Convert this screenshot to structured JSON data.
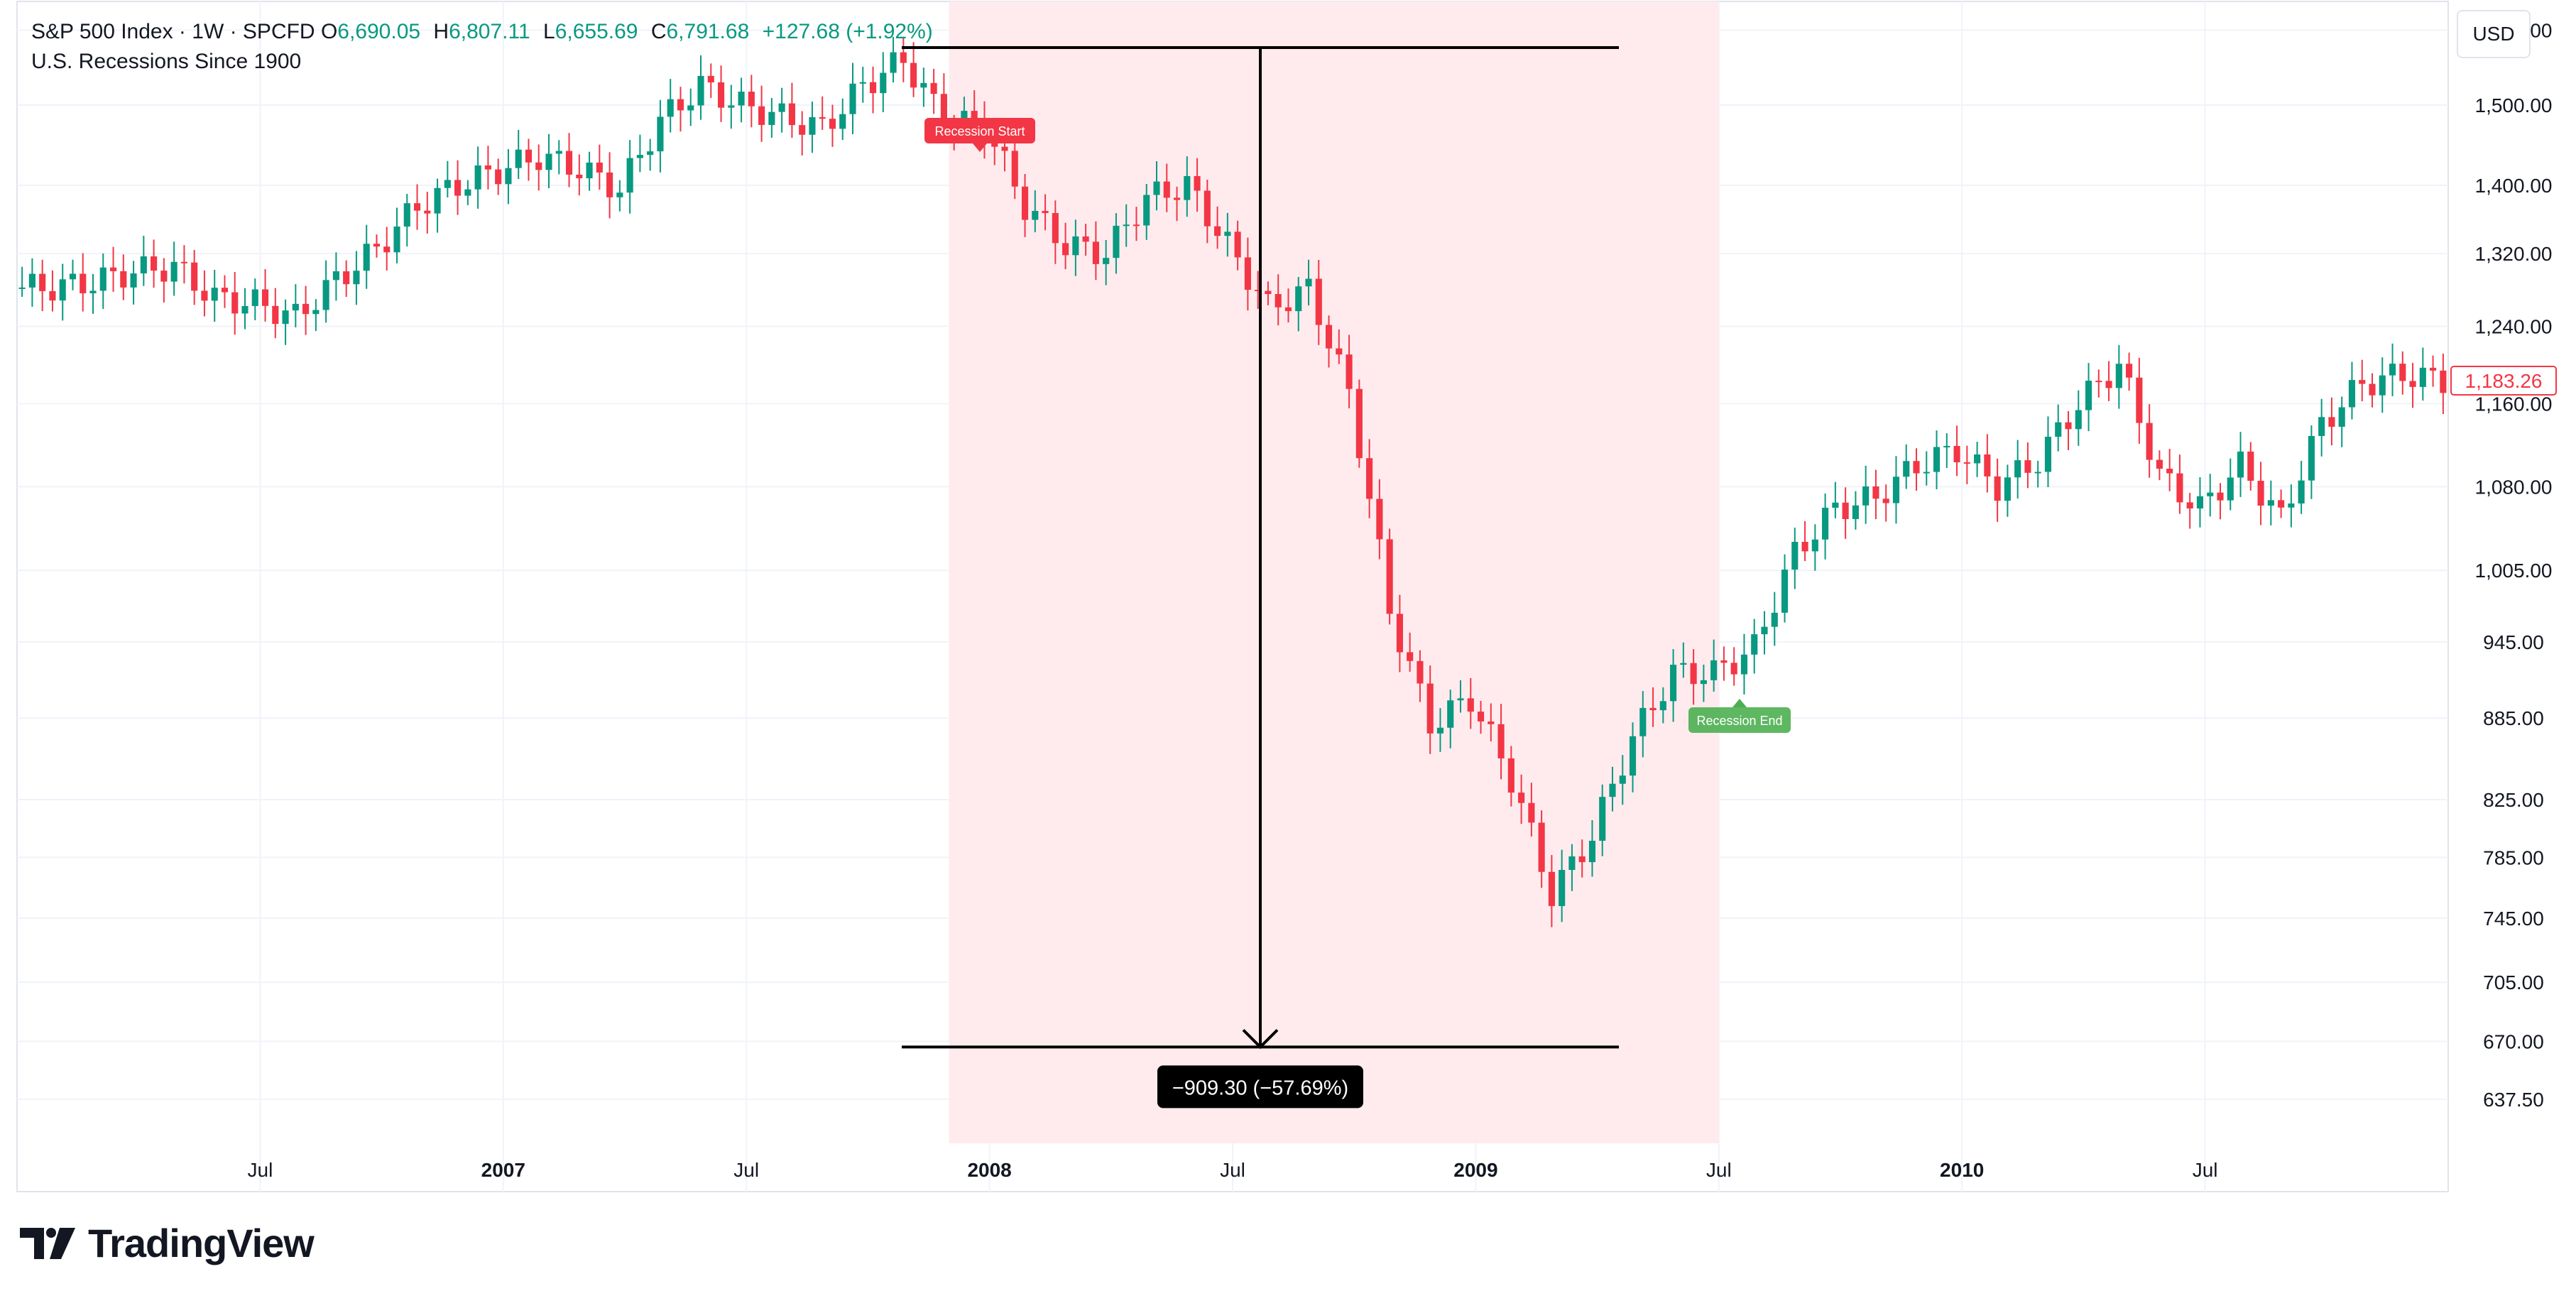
{
  "legend": {
    "symbol": "S&P 500 Index · 1W · SPCFD",
    "open_label": "O",
    "open": "6,690.05",
    "high_label": "H",
    "high": "6,807.11",
    "low_label": "L",
    "low": "6,655.69",
    "close_label": "C",
    "close": "6,791.68",
    "change": "+127.68 (+1.92%)",
    "indicator": "U.S. Recessions Since 1900"
  },
  "currency": "USD",
  "brand": "TradingView",
  "colors": {
    "up": "#089981",
    "down": "#f23645",
    "recession_band": "#ffebee",
    "text": "#131722"
  },
  "chart_data": {
    "type": "candlestick",
    "title": "S&P 500 Index · 1W · SPCFD",
    "y_scale": "log",
    "ylim": [
      610,
      1640
    ],
    "y_ticks": [
      "1,600.00",
      "1,500.00",
      "1,400.00",
      "1,320.00",
      "1,240.00",
      "1,160.00",
      "1,080.00",
      "1,005.00",
      "945.00",
      "885.00",
      "825.00",
      "785.00",
      "745.00",
      "705.00",
      "670.00",
      "637.50"
    ],
    "x_ticks": [
      "Jul",
      "2007",
      "Jul",
      "2008",
      "Jul",
      "2009",
      "Jul",
      "2010",
      "Jul"
    ],
    "x_range": [
      "2006-01",
      "2010-12"
    ],
    "last_price_label": "1,183.26",
    "recession": {
      "start": "2007-12",
      "end": "2009-06"
    },
    "annotations": {
      "recession_start": "Recession Start",
      "recession_end": "Recession End",
      "measure_label": "−909.30 (−57.69%)",
      "measure_from": 1576.09,
      "measure_to": 666.79
    },
    "series": [
      {
        "name": "S&P 500 weekly close",
        "x": [
          "2006-01",
          "2006-02",
          "2006-03",
          "2006-04",
          "2006-05",
          "2006-06",
          "2006-07",
          "2006-08",
          "2006-09",
          "2006-10",
          "2006-11",
          "2006-12",
          "2007-01",
          "2007-02",
          "2007-03",
          "2007-04",
          "2007-05",
          "2007-06",
          "2007-07",
          "2007-08",
          "2007-09",
          "2007-10",
          "2007-11",
          "2007-12",
          "2008-01",
          "2008-02",
          "2008-03",
          "2008-04",
          "2008-05",
          "2008-06",
          "2008-07",
          "2008-08",
          "2008-09",
          "2008-10",
          "2008-11",
          "2008-12",
          "2009-01",
          "2009-02",
          "2009-03",
          "2009-04",
          "2009-05",
          "2009-06",
          "2009-07",
          "2009-08",
          "2009-09",
          "2009-10",
          "2009-11",
          "2009-12",
          "2010-01",
          "2010-02",
          "2010-03",
          "2010-04",
          "2010-05",
          "2010-06",
          "2010-07",
          "2010-08",
          "2010-09",
          "2010-10",
          "2010-11",
          "2010-12"
        ],
        "values": [
          1282,
          1288,
          1300,
          1305,
          1270,
          1265,
          1250,
          1290,
          1325,
          1375,
          1400,
          1418,
          1435,
          1420,
          1395,
          1480,
          1525,
          1500,
          1485,
          1470,
          1525,
          1560,
          1480,
          1475,
          1375,
          1330,
          1320,
          1385,
          1400,
          1330,
          1260,
          1280,
          1170,
          970,
          880,
          900,
          840,
          760,
          800,
          870,
          920,
          920,
          940,
          1020,
          1060,
          1070,
          1100,
          1115,
          1080,
          1105,
          1160,
          1200,
          1090,
          1060,
          1100,
          1050,
          1140,
          1180,
          1190,
          1183
        ]
      }
    ]
  }
}
